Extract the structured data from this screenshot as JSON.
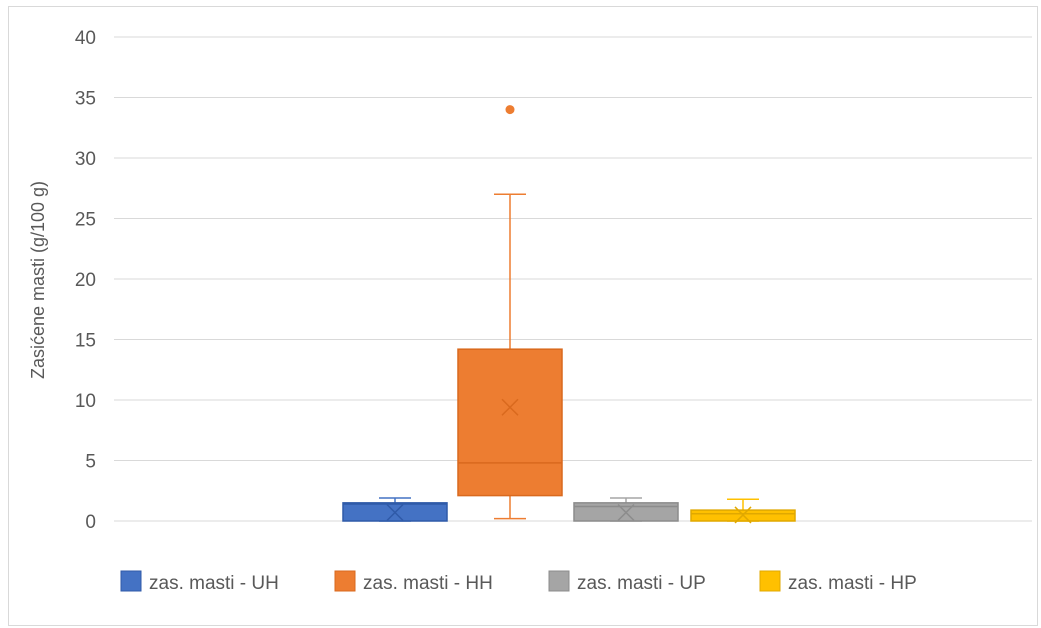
{
  "chart_data": {
    "type": "box",
    "ylabel": "Zasićene masti (g/100 g)",
    "ylim": [
      0,
      40
    ],
    "yticks": [
      0,
      5,
      10,
      15,
      20,
      25,
      30,
      35,
      40
    ],
    "grid": true,
    "legend_position": "bottom",
    "series": [
      {
        "name": "zas. masti - UH",
        "color": "#4472c4",
        "min": 0,
        "q1": 0,
        "median": 1.4,
        "q3": 1.5,
        "max": 1.9,
        "mean": 0.7,
        "outliers": []
      },
      {
        "name": "zas. masti - HH",
        "color": "#ed7d31",
        "min": 0.2,
        "q1": 2.1,
        "median": 4.8,
        "q3": 14.2,
        "max": 27,
        "mean": 9.4,
        "outliers": [
          34
        ]
      },
      {
        "name": "zas. masti - UP",
        "color": "#a5a5a5",
        "min": 0,
        "q1": 0,
        "median": 1.2,
        "q3": 1.5,
        "max": 1.9,
        "mean": 0.7,
        "outliers": []
      },
      {
        "name": "zas. masti - HP",
        "color": "#ffc000",
        "min": 0,
        "q1": 0,
        "median": 0.6,
        "q3": 0.9,
        "max": 1.8,
        "mean": 0.5,
        "outliers": []
      }
    ]
  }
}
